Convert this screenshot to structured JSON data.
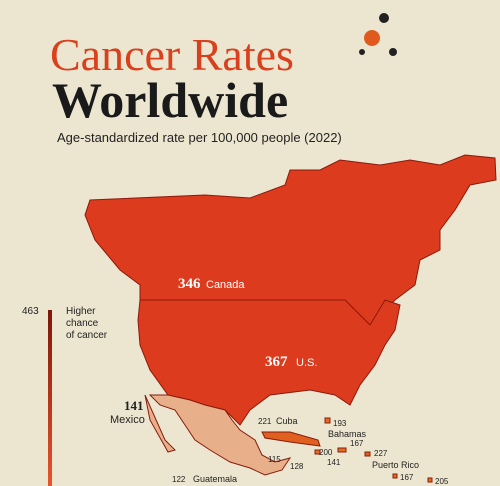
{
  "header": {
    "title_line1": "Cancer Rates",
    "title_line2": "Worldwide",
    "subtitle": "Age-standardized rate per 100,000 people (2022)"
  },
  "legend": {
    "max": 463,
    "label": [
      "Higher",
      "chance",
      "of cancer"
    ]
  },
  "map": {
    "regions": [
      {
        "value": 346,
        "name": "Canada"
      },
      {
        "value": 367,
        "name": "U.S."
      },
      {
        "value": 141,
        "name": "Mexico"
      },
      {
        "value": 221,
        "name": "Cuba"
      },
      {
        "value": 193,
        "name": "Bahamas"
      },
      {
        "value": 167
      },
      {
        "value": 200
      },
      {
        "value": 141
      },
      {
        "value": 227,
        "name": "Puerto Rico"
      },
      {
        "value": 167
      },
      {
        "value": 205
      },
      {
        "value": 115
      },
      {
        "value": 128
      },
      {
        "value": 122,
        "name": "Guatemala"
      }
    ]
  }
}
